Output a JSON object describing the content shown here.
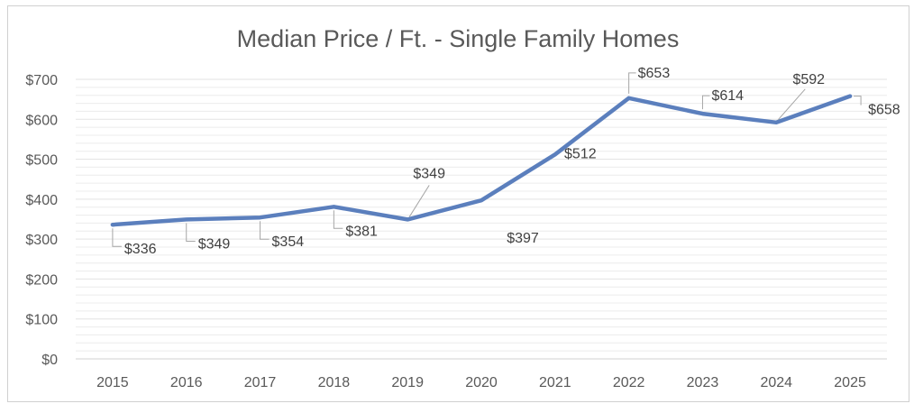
{
  "chart_data": {
    "type": "line",
    "title": "Median Price / Ft. - Single Family Homes",
    "xlabel": "",
    "ylabel": "",
    "categories": [
      "2015",
      "2016",
      "2017",
      "2018",
      "2019",
      "2020",
      "2021",
      "2022",
      "2023",
      "2024",
      "2025"
    ],
    "series": [
      {
        "values": [
          336,
          349,
          354,
          381,
          349,
          397,
          512,
          653,
          614,
          592,
          658
        ],
        "color": "#5b7fbd",
        "labels": [
          "$336",
          "$349",
          "$354",
          "$381",
          "$349",
          "$397",
          "$512",
          "$653",
          "$614",
          "$592",
          "$658"
        ]
      }
    ],
    "ylim": [
      0,
      700
    ],
    "yticks": [
      "$0",
      "$100",
      "$200",
      "$300",
      "$400",
      "$500",
      "$600",
      "$700"
    ],
    "grid": true,
    "gridline_color": "#e3e3e3",
    "legend": "none"
  }
}
